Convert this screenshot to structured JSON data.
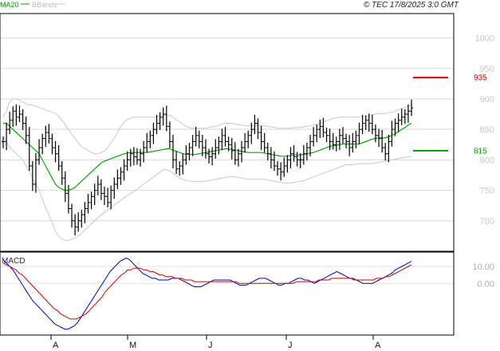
{
  "header": {
    "legend_ma": "MA20",
    "legend_bb": "BBands",
    "timestamp": "© TEC 17/8/2025 3:0 GMT"
  },
  "colors": {
    "ma": "#00aa00",
    "bands": "#c8c8c8",
    "price": "#000000",
    "macd": "#0000cc",
    "signal": "#cc0000",
    "target_high": "#cc0000",
    "target_low": "#009900"
  },
  "macd_panel": {
    "label": "MACD"
  },
  "chart_data": [
    {
      "type": "ohlc",
      "title": "",
      "y_ticks": [
        700,
        750,
        800,
        850,
        900,
        950,
        1000
      ],
      "ylim": [
        650,
        1040
      ],
      "x_ticks": [
        "A",
        "M",
        "J",
        "J",
        "A"
      ],
      "grid": true,
      "targets": [
        {
          "label": "935",
          "value": 935,
          "color": "#cc0000"
        },
        {
          "label": "815",
          "value": 815,
          "color": "#009900"
        }
      ],
      "close_series": [
        830,
        850,
        865,
        880,
        870,
        875,
        860,
        840,
        790,
        760,
        800,
        820,
        835,
        845,
        835,
        820,
        810,
        790,
        770,
        745,
        720,
        700,
        690,
        700,
        710,
        720,
        730,
        740,
        750,
        760,
        745,
        740,
        730,
        750,
        760,
        770,
        780,
        790,
        800,
        810,
        805,
        800,
        810,
        820,
        830,
        840,
        850,
        860,
        870,
        875,
        855,
        830,
        800,
        785,
        790,
        800,
        810,
        820,
        830,
        840,
        830,
        820,
        810,
        805,
        810,
        820,
        830,
        840,
        830,
        825,
        815,
        800,
        810,
        820,
        830,
        840,
        850,
        860,
        845,
        830,
        820,
        810,
        800,
        790,
        785,
        780,
        790,
        800,
        810,
        805,
        800,
        800,
        810,
        820,
        830,
        840,
        850,
        855,
        845,
        840,
        830,
        825,
        830,
        840,
        835,
        830,
        820,
        830,
        840,
        850,
        860,
        865,
        860,
        850,
        840,
        835,
        820,
        810,
        830,
        850,
        860,
        865,
        870,
        875,
        880,
        885
      ],
      "ma20_series": [
        860,
        860,
        855,
        850,
        845,
        840,
        835,
        830,
        825,
        820,
        815,
        810,
        800,
        790,
        780,
        770,
        760,
        755,
        752,
        750,
        750,
        752,
        755,
        760,
        765,
        770,
        775,
        780,
        785,
        790,
        795,
        798,
        800,
        802,
        804,
        806,
        808,
        810,
        811,
        812,
        812,
        812,
        812,
        812,
        812,
        813,
        814,
        815,
        816,
        817,
        818,
        818,
        816,
        814,
        812,
        810,
        809,
        809,
        809,
        809,
        810,
        811,
        812,
        813,
        814,
        815,
        816,
        817,
        818,
        818,
        817,
        816,
        815,
        814,
        813,
        812,
        812,
        812,
        812,
        812,
        811,
        810,
        809,
        808,
        807,
        806,
        806,
        806,
        807,
        808,
        808,
        808,
        809,
        810,
        811,
        812,
        814,
        816,
        818,
        820,
        822,
        823,
        824,
        825,
        826,
        826,
        826,
        826,
        826,
        826,
        828,
        830,
        832,
        834,
        835,
        836,
        836,
        836,
        838,
        840,
        843,
        846,
        850,
        853,
        857,
        860
      ],
      "bb_upper": [
        870,
        880,
        895,
        900,
        900,
        898,
        895,
        892,
        890,
        890,
        888,
        886,
        884,
        882,
        880,
        878,
        876,
        872,
        865,
        858,
        850,
        842,
        835,
        828,
        822,
        818,
        815,
        812,
        810,
        810,
        812,
        815,
        820,
        828,
        836,
        845,
        855,
        862,
        866,
        868,
        870,
        870,
        870,
        870,
        870,
        870,
        870,
        871,
        872,
        873,
        874,
        873,
        870,
        866,
        862,
        858,
        855,
        853,
        852,
        852,
        852,
        852,
        852,
        853,
        854,
        855,
        857,
        859,
        860,
        860,
        860,
        859,
        858,
        857,
        856,
        856,
        856,
        856,
        856,
        856,
        856,
        855,
        854,
        853,
        852,
        852,
        852,
        852,
        852,
        853,
        853,
        853,
        854,
        855,
        856,
        857,
        858,
        860,
        862,
        864,
        866,
        868,
        869,
        870,
        870,
        870,
        870,
        870,
        870,
        870,
        871,
        872,
        873,
        874,
        875,
        876,
        876,
        876,
        877,
        878,
        880,
        882,
        884,
        886,
        888,
        890
      ],
      "bb_lower": [
        840,
        830,
        820,
        815,
        810,
        805,
        800,
        790,
        780,
        770,
        760,
        750,
        735,
        722,
        710,
        697,
        682,
        675,
        670,
        668,
        668,
        670,
        672,
        675,
        680,
        685,
        690,
        695,
        700,
        705,
        710,
        714,
        718,
        722,
        726,
        730,
        734,
        738,
        742,
        745,
        748,
        752,
        756,
        760,
        764,
        768,
        772,
        776,
        780,
        784,
        784,
        782,
        778,
        774,
        770,
        768,
        766,
        765,
        765,
        764,
        764,
        765,
        765,
        766,
        767,
        768,
        769,
        770,
        771,
        772,
        772,
        772,
        771,
        770,
        769,
        768,
        768,
        768,
        768,
        768,
        768,
        767,
        766,
        765,
        764,
        763,
        762,
        762,
        762,
        763,
        764,
        765,
        766,
        768,
        770,
        772,
        774,
        776,
        778,
        780,
        782,
        784,
        786,
        788,
        790,
        792,
        792,
        792,
        793,
        793,
        794,
        794,
        794,
        794,
        795,
        796,
        797,
        798,
        799,
        800,
        801,
        802,
        803,
        804,
        805,
        806
      ]
    },
    {
      "type": "line",
      "title": "MACD",
      "y_ticks": [
        0,
        10
      ],
      "ylim": [
        -30,
        18
      ],
      "series": [
        {
          "values": [
            14,
            12,
            10,
            8,
            5,
            2,
            -1,
            -4,
            -7,
            -10,
            -12,
            -14,
            -16,
            -18,
            -20,
            -22,
            -24,
            -25,
            -26,
            -27,
            -27,
            -26,
            -25,
            -23,
            -20,
            -17,
            -14,
            -11,
            -8,
            -5,
            -2,
            1,
            4,
            7,
            9,
            11,
            13,
            14,
            15,
            14,
            12,
            10,
            8,
            6,
            5,
            4,
            3,
            3,
            2,
            2,
            2,
            2,
            3,
            3,
            3,
            2,
            1,
            0,
            -1,
            -2,
            -2,
            -2,
            -1,
            0,
            1,
            2,
            2,
            2,
            2,
            2,
            2,
            1,
            0,
            -1,
            -1,
            -1,
            0,
            1,
            2,
            3,
            3,
            3,
            2,
            1,
            0,
            -1,
            -1,
            0,
            0,
            1,
            2,
            3,
            3,
            2,
            2,
            1,
            0,
            1,
            2,
            3,
            4,
            5,
            6,
            7,
            6,
            5,
            4,
            3,
            3,
            2,
            1,
            0,
            0,
            0,
            0,
            1,
            2,
            3,
            4,
            5,
            6,
            8,
            9,
            10,
            11,
            12,
            13
          ]
        },
        {
          "values": [
            12,
            11,
            10,
            9,
            8,
            6,
            5,
            3,
            1,
            -1,
            -3,
            -5,
            -7,
            -9,
            -11,
            -13,
            -15,
            -16,
            -18,
            -19,
            -20,
            -21,
            -21,
            -21,
            -20,
            -19,
            -18,
            -16,
            -14,
            -12,
            -10,
            -8,
            -5,
            -3,
            -1,
            1,
            3,
            5,
            6,
            8,
            8,
            9,
            9,
            9,
            8,
            8,
            7,
            7,
            6,
            5,
            5,
            4,
            4,
            4,
            3,
            3,
            3,
            2,
            2,
            2,
            1,
            1,
            1,
            1,
            1,
            1,
            1,
            1,
            1,
            1,
            1,
            1,
            1,
            1,
            0,
            0,
            0,
            0,
            0,
            0,
            0,
            0,
            0,
            0,
            0,
            0,
            0,
            0,
            0,
            0,
            0,
            0,
            1,
            1,
            1,
            1,
            1,
            1,
            1,
            2,
            2,
            2,
            2,
            3,
            3,
            3,
            3,
            3,
            3,
            3,
            2,
            2,
            2,
            2,
            2,
            2,
            2,
            3,
            3,
            3,
            4,
            4,
            5,
            6,
            7,
            8,
            9,
            10,
            11
          ]
        }
      ]
    }
  ]
}
